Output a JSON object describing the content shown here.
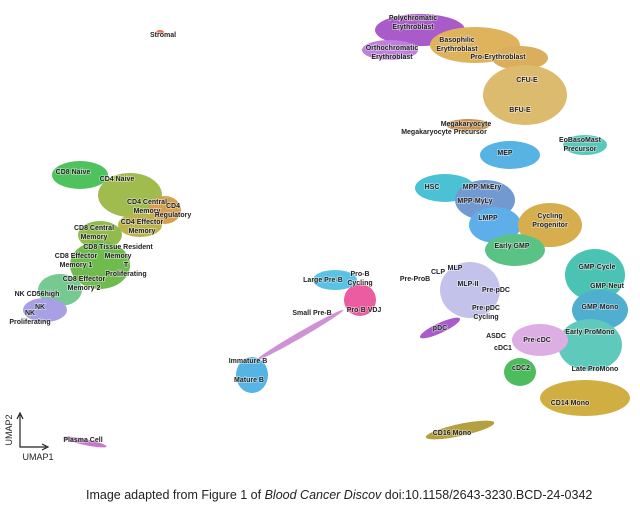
{
  "clusters": [
    [
      "Stromal"
    ],
    [
      "Polychromatic",
      "Erythroblast"
    ],
    [
      "Basophilic",
      "Erythroblast"
    ],
    [
      "Orthochromatic",
      "Erythroblast"
    ],
    [
      "Pro-Erythroblast"
    ],
    [
      "CFU-E"
    ],
    [
      "BFU-E"
    ],
    [
      "Megakaryocyte"
    ],
    [
      "Megakaryocyte Precursor"
    ],
    [
      "EoBasoMast",
      "Precursor"
    ],
    [
      "MEP"
    ],
    [
      "HSC"
    ],
    [
      "MPP-MkEry"
    ],
    [
      "MPP-MyLy"
    ],
    [
      "LMPP"
    ],
    [
      "Cycling",
      "Progenitor"
    ],
    [
      "Early GMP"
    ],
    [
      "CD8 Naive"
    ],
    [
      "CD4 Naive"
    ],
    [
      "CD4 Central",
      "Memory"
    ],
    [
      "CD4",
      "Regulatory"
    ],
    [
      "CD4 Effector",
      "Memory"
    ],
    [
      "CD8 Central",
      "Memory"
    ],
    [
      "CD8 Tissue Resident",
      "Memory"
    ],
    [
      "CD8 Effector",
      "Memory 1"
    ],
    [
      "T",
      "Proliferating"
    ],
    [
      "CD8 Effector",
      "Memory 2"
    ],
    [
      "NK CD56high"
    ],
    [
      "NK"
    ],
    [
      "NK",
      "Proliferating"
    ],
    [
      "Large Pre-B"
    ],
    [
      "Pro-B",
      "Cycling"
    ],
    [
      "Pre-ProB"
    ],
    [
      "CLP"
    ],
    [
      "MLP"
    ],
    [
      "MLP-II"
    ],
    [
      "Pre-pDC"
    ],
    [
      "GMP-Cycle"
    ],
    [
      "GMP-Neut"
    ],
    [
      "GMP-Mono"
    ],
    [
      "Small Pre-B"
    ],
    [
      "Pro-B VDJ"
    ],
    [
      "Pre-pDC",
      "Cycling"
    ],
    [
      "pDC"
    ],
    [
      "Early ProMono"
    ],
    [
      "ASDC"
    ],
    [
      "cDC1"
    ],
    [
      "Pre-cDC"
    ],
    [
      "cDC2"
    ],
    [
      "Late ProMono"
    ],
    [
      "Immature B"
    ],
    [
      "Mature B"
    ],
    [
      "CD14 Mono"
    ],
    [
      "CD16 Mono"
    ],
    [
      "Plasma Cell"
    ]
  ],
  "axes": {
    "y": "UMAP2",
    "x": "UMAP1"
  },
  "caption": {
    "prefix": "Image adapted from Figure 1 of",
    "journal": "Blood Cancer Discov",
    "doi": "doi:10.1158/2643-3230.BCD-24-0342"
  }
}
